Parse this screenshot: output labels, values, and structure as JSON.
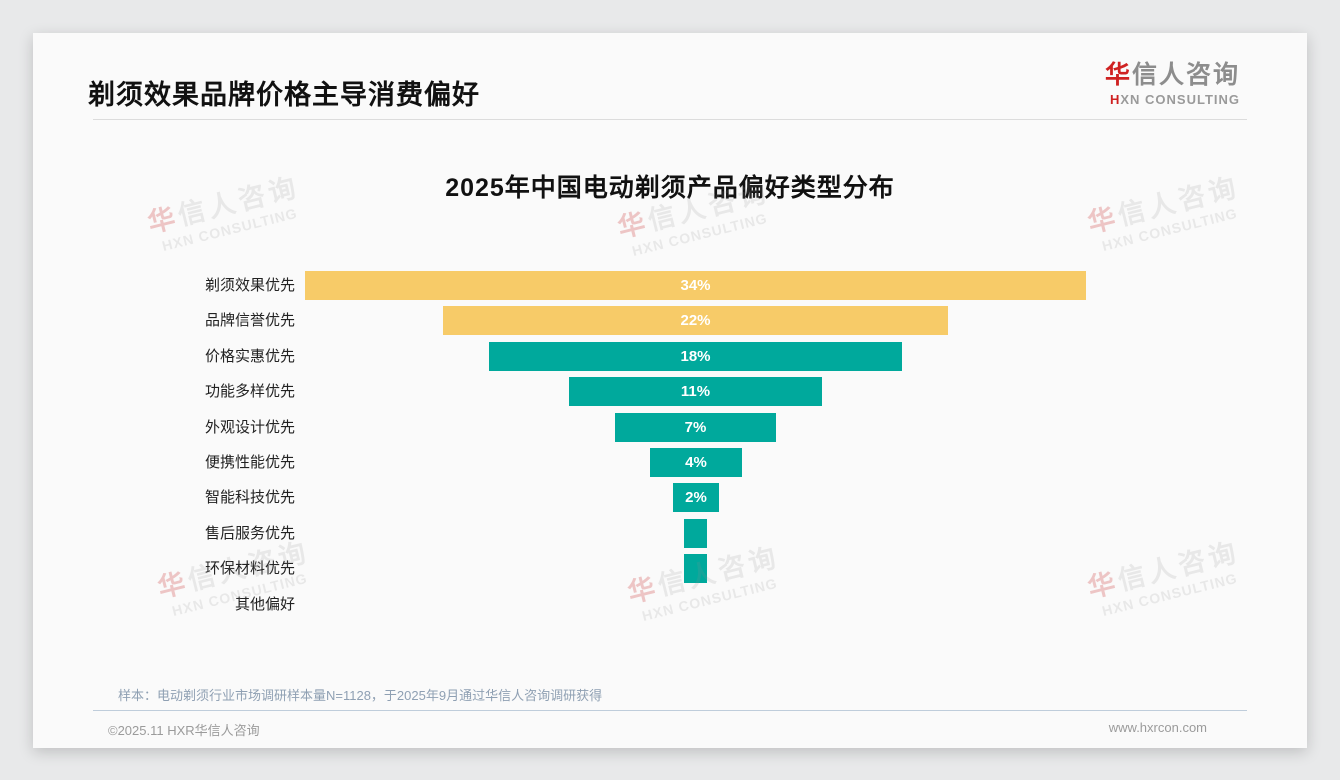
{
  "header": {
    "title": "剃须效果品牌价格主导消费偏好",
    "logo": {
      "cn_first": "华",
      "cn_rest": "信人咨询",
      "en_first": "H",
      "en_rest": "XN CONSULTING"
    }
  },
  "watermark": {
    "line1_first": "华",
    "line1_rest": "信人咨询",
    "line2": "HXN CONSULTING"
  },
  "chart_data": {
    "type": "bar",
    "variant": "centered-funnel-horizontal",
    "title": "2025年中国电动剃须产品偏好类型分布",
    "categories": [
      "剃须效果优先",
      "品牌信誉优先",
      "价格实惠优先",
      "功能多样优先",
      "外观设计优先",
      "便携性能优先",
      "智能科技优先",
      "售后服务优先",
      "环保材料优先",
      "其他偏好"
    ],
    "values": [
      34,
      22,
      18,
      11,
      7,
      4,
      2,
      1,
      1,
      0
    ],
    "bar_labels": [
      "34%",
      "22%",
      "18%",
      "11%",
      "7%",
      "4%",
      "2%",
      "",
      "",
      ""
    ],
    "unit": "%",
    "xlim": [
      0,
      34
    ],
    "grid": false,
    "legend": false,
    "colors": {
      "highlight": "#f7cb68",
      "default": "#00a99c",
      "bar_label": "#ffffff"
    },
    "highlight_indices": [
      0,
      1
    ]
  },
  "footer": {
    "note": "样本：电动剃须行业市场调研样本量N=1128，于2025年9月通过华信人咨询调研获得",
    "copyright": "©2025.11 HXR华信人咨询",
    "website": "www.hxrcon.com"
  }
}
